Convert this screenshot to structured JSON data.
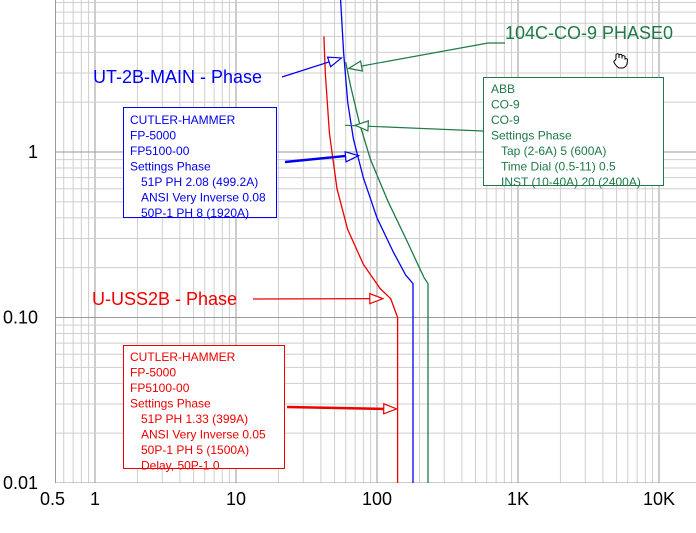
{
  "chart_data": {
    "type": "line",
    "xscale": "log",
    "yscale": "log",
    "xlim": [
      0.5,
      10000
    ],
    "ylim": [
      0.01,
      10
    ],
    "grid": true,
    "x_tick_labels": [
      {
        "value": 0.5,
        "label": "0.5"
      },
      {
        "value": 1,
        "label": "1"
      },
      {
        "value": 10,
        "label": "10"
      },
      {
        "value": 100,
        "label": "100"
      },
      {
        "value": 1000,
        "label": "1K"
      },
      {
        "value": 10000,
        "label": "10K"
      }
    ],
    "y_tick_labels": [
      {
        "value": 0.01,
        "label": "0.01"
      },
      {
        "value": 0.1,
        "label": "0.10"
      },
      {
        "value": 1,
        "label": "1"
      }
    ],
    "series": [
      {
        "name": "UT-2B-MAIN - Phase",
        "color": "#0000ee",
        "points": [
          [
            55,
            8.7
          ],
          [
            58,
            4.0
          ],
          [
            62,
            2.0
          ],
          [
            68,
            1.2
          ],
          [
            80,
            0.7
          ],
          [
            100,
            0.4
          ],
          [
            130,
            0.25
          ],
          [
            160,
            0.18
          ],
          [
            170,
            0.17
          ],
          [
            180,
            0.16
          ],
          [
            180,
            0.01
          ]
        ],
        "label": {
          "text": "UT-2B-MAIN - Phase",
          "arrow_to": [
            56,
            3.7
          ]
        },
        "settings_box": {
          "lines": [
            "CUTLER-HAMMER",
            "FP-5000",
            "FP5100-00",
            "Settings Phase",
            "51P PH 2.08 (499.2A)",
            "ANSI Very Inverse 0.08",
            "50P-1 PH 8 (1920A)"
          ],
          "arrow_to": [
            74,
            0.95
          ]
        }
      },
      {
        "name": "U-USS2B - Phase",
        "color": "#ee0000",
        "points": [
          [
            42,
            5.0
          ],
          [
            43,
            3.0
          ],
          [
            46,
            1.3
          ],
          [
            52,
            0.6
          ],
          [
            62,
            0.34
          ],
          [
            80,
            0.21
          ],
          [
            105,
            0.15
          ],
          [
            125,
            0.13
          ],
          [
            140,
            0.1
          ],
          [
            140,
            0.01
          ]
        ],
        "label": {
          "text": "U-USS2B - Phase",
          "arrow_to": [
            110,
            0.13
          ]
        },
        "settings_box": {
          "lines": [
            "CUTLER-HAMMER",
            "FP-5000",
            "FP5100-00",
            "Settings Phase",
            "51P PH 1.33 (399A)",
            "ANSI Very Inverse 0.05",
            "50P-1 PH 5 (1500A)",
            "Delay, 50P-1 0"
          ],
          "arrow_to": [
            138,
            0.028
          ]
        }
      },
      {
        "name": "104C-CO-9 PHASE0",
        "color": "#1e7a46",
        "points": [
          [
            60,
            3.5
          ],
          [
            65,
            2.5
          ],
          [
            75,
            1.5
          ],
          [
            90,
            0.9
          ],
          [
            120,
            0.5
          ],
          [
            160,
            0.3
          ],
          [
            200,
            0.2
          ],
          [
            215,
            0.175
          ],
          [
            230,
            0.16
          ],
          [
            230,
            0.01
          ]
        ],
        "label": {
          "text": "104C-CO-9 PHASE0",
          "arrow_to": [
            63,
            3.2
          ]
        },
        "settings_box": {
          "lines": [
            "ABB",
            "CO-9",
            "CO-9",
            "Settings Phase",
            "Tap (2-6A) 5 (600A)",
            "Time Dial (0.5-11) 0.5",
            "INST (10-40A) 20 (2400A)"
          ],
          "arrow_to": [
            70,
            1.45
          ]
        }
      }
    ]
  }
}
